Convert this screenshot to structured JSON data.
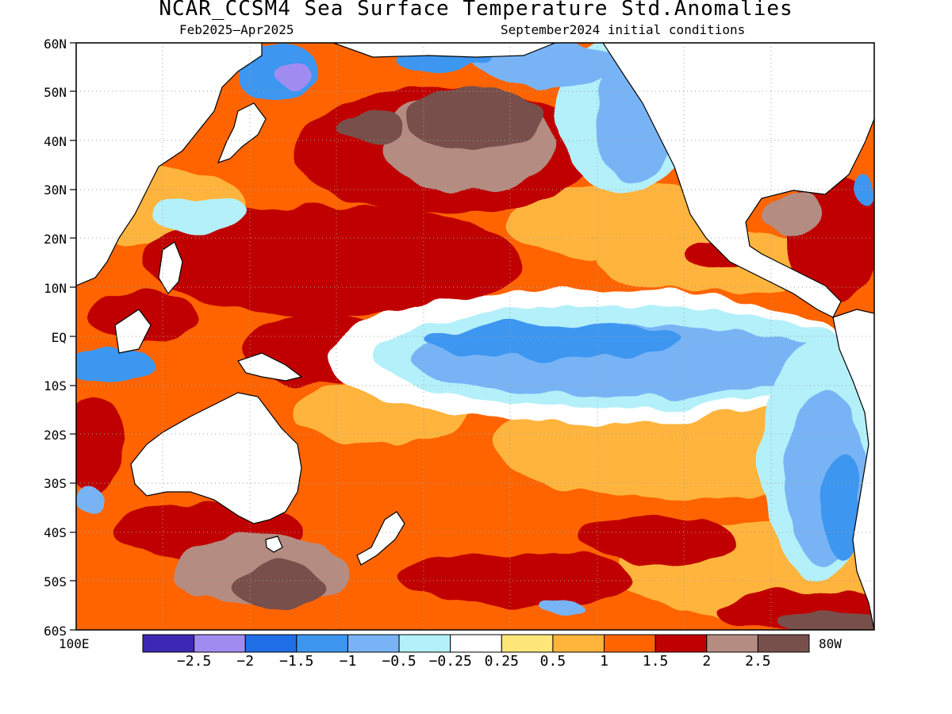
{
  "title": "NCAR_CCSM4 Sea Surface Temperature Std.Anomalies",
  "subtitle_left": "Feb2025–Apr2025",
  "subtitle_right": "September2024 initial conditions",
  "lat_labels": [
    "60N",
    "50N",
    "40N",
    "30N",
    "20N",
    "10N",
    "EQ",
    "10S",
    "20S",
    "30S",
    "40S",
    "50S",
    "60S"
  ],
  "lon_labels": {
    "west": "100E",
    "east": "80W"
  },
  "colorbar": {
    "colors": [
      "#3c28b4",
      "#a08cf0",
      "#1e6ee6",
      "#3c96f0",
      "#78b4f5",
      "#b4f0fa",
      "#ffffff",
      "#ffe678",
      "#ffb43c",
      "#ff6400",
      "#c00000",
      "#b48c82",
      "#78504b"
    ],
    "labels": [
      "−2.5",
      "−2",
      "−1.5",
      "−1",
      "−0.5",
      "−0.25",
      "0.25",
      "0.5",
      "1",
      "1.5",
      "2",
      "2.5"
    ]
  },
  "map_colors": {
    "land_fill": "#ffffff",
    "coast": "#000000",
    "grid": "#a0a0a0"
  }
}
